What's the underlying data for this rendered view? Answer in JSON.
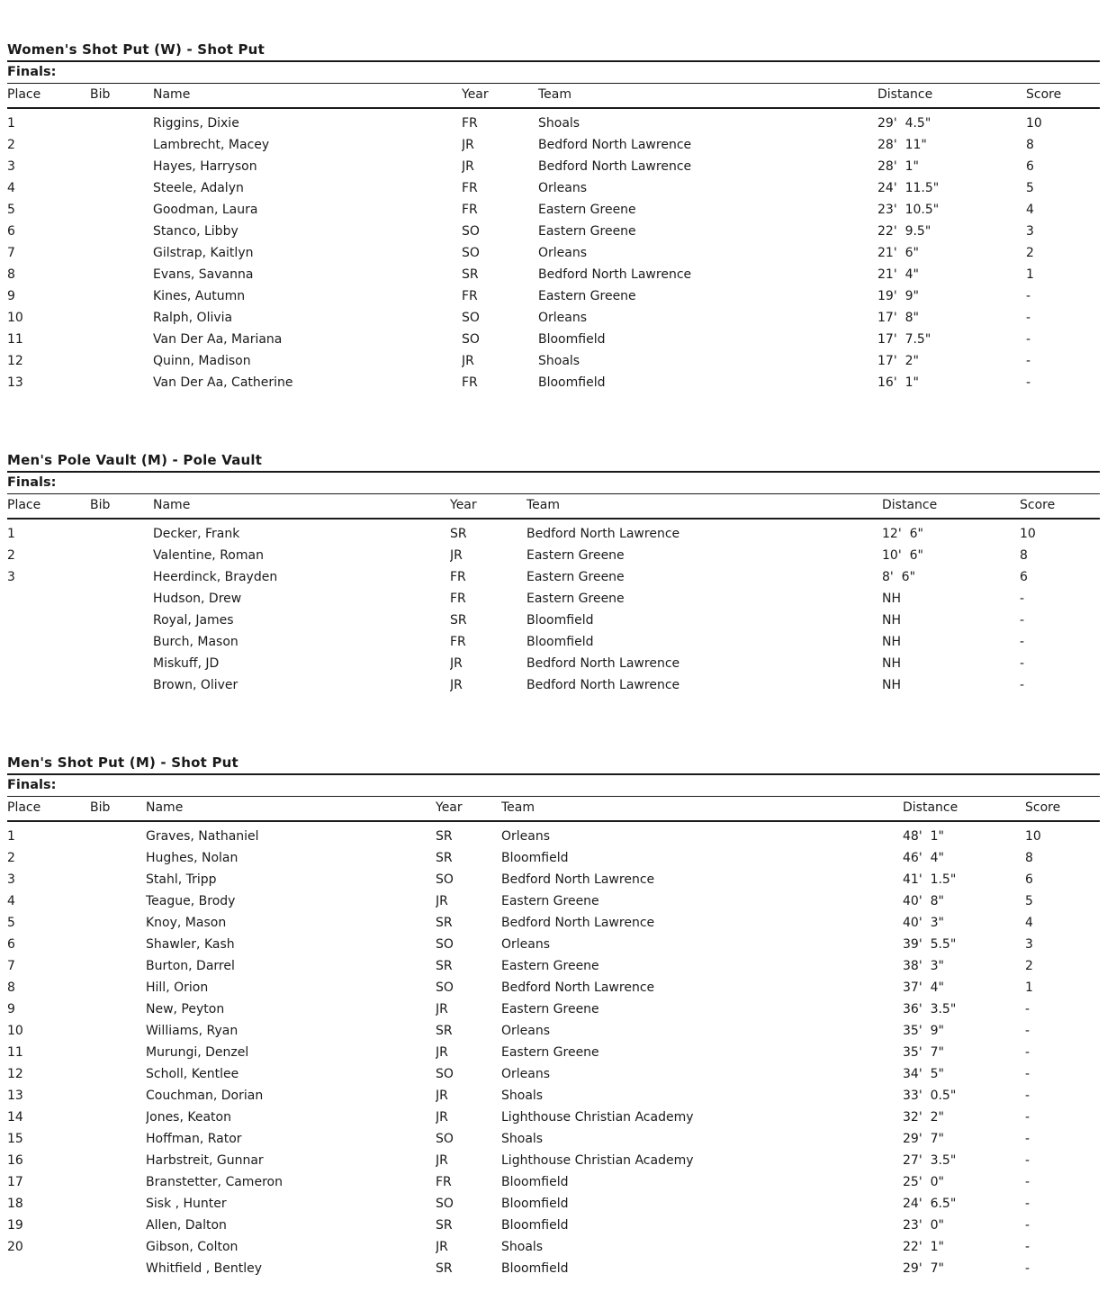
{
  "colors": {
    "background": "#ffffff",
    "text": "#1a1a1a",
    "rule_line": "#1a1a1a"
  },
  "sections": [
    {
      "title": "Women's Shot Put (W) - Shot Put",
      "round": "Finals:",
      "columns": [
        "Place",
        "Bib",
        "Name",
        "Year",
        "Team",
        "Distance",
        "Score"
      ],
      "rows": [
        [
          "1",
          "",
          "Riggins, Dixie",
          "FR",
          "Shoals",
          "29'  4.5\"",
          "10"
        ],
        [
          "2",
          "",
          "Lambrecht, Macey",
          "JR",
          "Bedford North Lawrence",
          "28'  11\"",
          "8"
        ],
        [
          "3",
          "",
          "Hayes, Harryson",
          "JR",
          "Bedford North Lawrence",
          "28'  1\"",
          "6"
        ],
        [
          "4",
          "",
          "Steele, Adalyn",
          "FR",
          "Orleans",
          "24'  11.5\"",
          "5"
        ],
        [
          "5",
          "",
          "Goodman, Laura",
          "FR",
          "Eastern Greene",
          "23'  10.5\"",
          "4"
        ],
        [
          "6",
          "",
          "Stanco, Libby",
          "SO",
          "Eastern Greene",
          "22'  9.5\"",
          "3"
        ],
        [
          "7",
          "",
          "Gilstrap, Kaitlyn",
          "SO",
          "Orleans",
          "21'  6\"",
          "2"
        ],
        [
          "8",
          "",
          "Evans, Savanna",
          "SR",
          "Bedford North Lawrence",
          "21'  4\"",
          "1"
        ],
        [
          "9",
          "",
          "Kines, Autumn",
          "FR",
          "Eastern Greene",
          "19'  9\"",
          "-"
        ],
        [
          "10",
          "",
          "Ralph, Olivia",
          "SO",
          "Orleans",
          "17'  8\"",
          "-"
        ],
        [
          "11",
          "",
          "Van Der Aa, Mariana",
          "SO",
          "Bloomfield",
          "17'  7.5\"",
          "-"
        ],
        [
          "12",
          "",
          "Quinn, Madison",
          "JR",
          "Shoals",
          "17'  2\"",
          "-"
        ],
        [
          "13",
          "",
          "Van Der Aa, Catherine",
          "FR",
          "Bloomfield",
          "16'  1\"",
          "-"
        ]
      ]
    },
    {
      "title": "Men's Pole Vault (M) - Pole Vault",
      "round": "Finals:",
      "columns": [
        "Place",
        "Bib",
        "Name",
        "Year",
        "Team",
        "Distance",
        "Score"
      ],
      "rows": [
        [
          "1",
          "",
          "Decker, Frank",
          "SR",
          "Bedford North Lawrence",
          "12'  6\"",
          "10"
        ],
        [
          "2",
          "",
          "Valentine, Roman",
          "JR",
          "Eastern Greene",
          "10'  6\"",
          "8"
        ],
        [
          "3",
          "",
          "Heerdinck, Brayden",
          "FR",
          "Eastern Greene",
          "8'  6\"",
          "6"
        ],
        [
          "",
          "",
          "Hudson, Drew",
          "FR",
          "Eastern Greene",
          "NH",
          "-"
        ],
        [
          "",
          "",
          "Royal, James",
          "SR",
          "Bloomfield",
          "NH",
          "-"
        ],
        [
          "",
          "",
          "Burch, Mason",
          "FR",
          "Bloomfield",
          "NH",
          "-"
        ],
        [
          "",
          "",
          "Miskuff, JD",
          "JR",
          "Bedford North Lawrence",
          "NH",
          "-"
        ],
        [
          "",
          "",
          "Brown, Oliver",
          "JR",
          "Bedford North Lawrence",
          "NH",
          "-"
        ]
      ]
    },
    {
      "title": "Men's Shot Put (M) - Shot Put",
      "round": "Finals:",
      "columns": [
        "Place",
        "Bib",
        "Name",
        "Year",
        "Team",
        "Distance",
        "Score"
      ],
      "rows": [
        [
          "1",
          "",
          "Graves, Nathaniel",
          "SR",
          "Orleans",
          "48'  1\"",
          "10"
        ],
        [
          "2",
          "",
          "Hughes, Nolan",
          "SR",
          "Bloomfield",
          "46'  4\"",
          "8"
        ],
        [
          "3",
          "",
          "Stahl, Tripp",
          "SO",
          "Bedford North Lawrence",
          "41'  1.5\"",
          "6"
        ],
        [
          "4",
          "",
          "Teague, Brody",
          "JR",
          "Eastern Greene",
          "40'  8\"",
          "5"
        ],
        [
          "5",
          "",
          "Knoy, Mason",
          "SR",
          "Bedford North Lawrence",
          "40'  3\"",
          "4"
        ],
        [
          "6",
          "",
          "Shawler, Kash",
          "SO",
          "Orleans",
          "39'  5.5\"",
          "3"
        ],
        [
          "7",
          "",
          "Burton, Darrel",
          "SR",
          "Eastern Greene",
          "38'  3\"",
          "2"
        ],
        [
          "8",
          "",
          "Hill, Orion",
          "SO",
          "Bedford North Lawrence",
          "37'  4\"",
          "1"
        ],
        [
          "9",
          "",
          "New, Peyton",
          "JR",
          "Eastern Greene",
          "36'  3.5\"",
          "-"
        ],
        [
          "10",
          "",
          "Williams, Ryan",
          "SR",
          "Orleans",
          "35'  9\"",
          "-"
        ],
        [
          "11",
          "",
          "Murungi, Denzel",
          "JR",
          "Eastern Greene",
          "35'  7\"",
          "-"
        ],
        [
          "12",
          "",
          "Scholl, Kentlee",
          "SO",
          "Orleans",
          "34'  5\"",
          "-"
        ],
        [
          "13",
          "",
          "Couchman, Dorian",
          "JR",
          "Shoals",
          "33'  0.5\"",
          "-"
        ],
        [
          "14",
          "",
          "Jones, Keaton",
          "JR",
          "Lighthouse Christian Academy",
          "32'  2\"",
          "-"
        ],
        [
          "15",
          "",
          "Hoffman, Rator",
          "SO",
          "Shoals",
          "29'  7\"",
          "-"
        ],
        [
          "16",
          "",
          "Harbstreit, Gunnar",
          "JR",
          "Lighthouse Christian Academy",
          "27'  3.5\"",
          "-"
        ],
        [
          "17",
          "",
          "Branstetter, Cameron",
          "FR",
          "Bloomfield",
          "25'  0\"",
          "-"
        ],
        [
          "18",
          "",
          "Sisk , Hunter",
          "SO",
          "Bloomfield",
          "24'  6.5\"",
          "-"
        ],
        [
          "19",
          "",
          "Allen, Dalton",
          "SR",
          "Bloomfield",
          "23'  0\"",
          "-"
        ],
        [
          "20",
          "",
          "Gibson, Colton",
          "JR",
          "Shoals",
          "22'  1\"",
          "-"
        ],
        [
          "",
          "",
          "Whitfield , Bentley",
          "SR",
          "Bloomfield",
          "29'  7\"",
          "-"
        ]
      ]
    }
  ]
}
